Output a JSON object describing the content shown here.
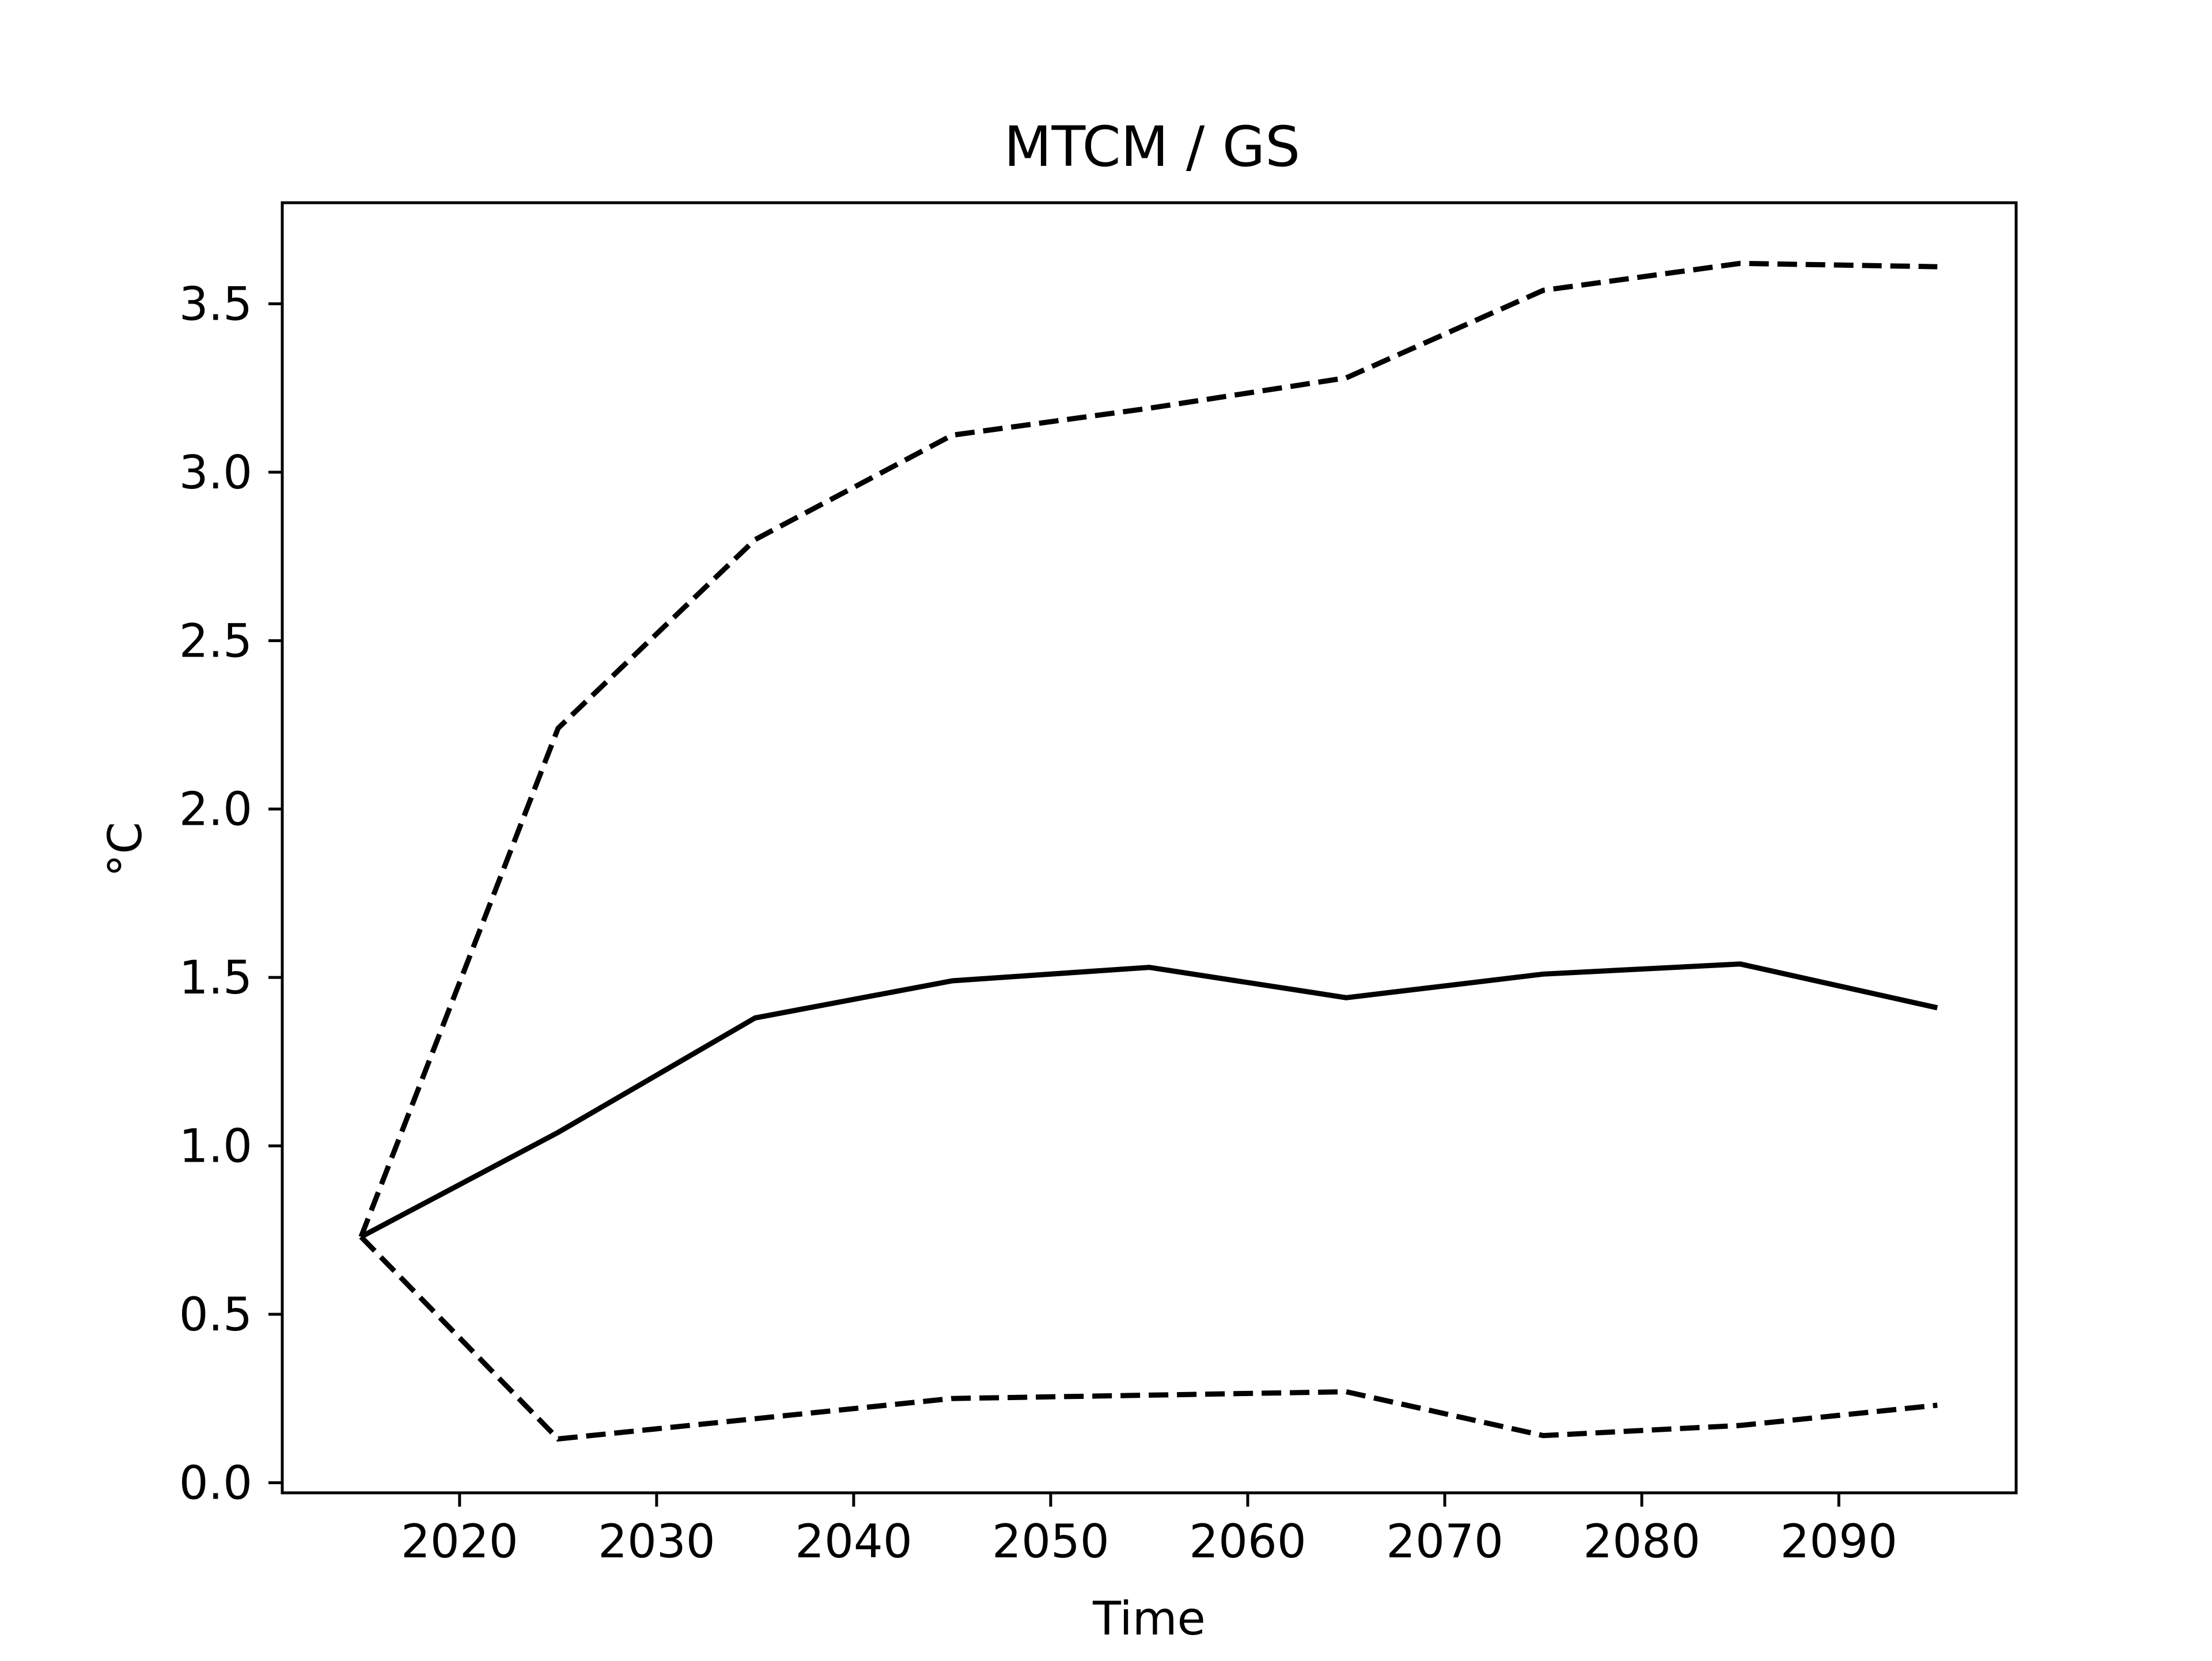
{
  "chart_data": {
    "type": "line",
    "title": "MTCM / GS",
    "xlabel": "Time",
    "ylabel": "°C",
    "xlim": [
      2011,
      2099
    ],
    "ylim": [
      -0.03,
      3.8
    ],
    "xticks": [
      2020,
      2030,
      2040,
      2050,
      2060,
      2070,
      2080,
      2090
    ],
    "yticks": [
      0.0,
      0.5,
      1.0,
      1.5,
      2.0,
      2.5,
      3.0,
      3.5
    ],
    "ytick_labels": [
      "0.0",
      "0.5",
      "1.0",
      "1.5",
      "2.0",
      "2.5",
      "3.0",
      "3.5"
    ],
    "grid": false,
    "legend": "none",
    "x": [
      2015,
      2025,
      2035,
      2045,
      2055,
      2065,
      2075,
      2085,
      2095
    ],
    "series": [
      {
        "style": "solid",
        "color": "#000000",
        "values": [
          0.73,
          1.04,
          1.38,
          1.49,
          1.53,
          1.44,
          1.51,
          1.54,
          1.41
        ]
      },
      {
        "style": "dashed",
        "color": "#000000",
        "values": [
          0.73,
          2.24,
          2.8,
          3.11,
          3.19,
          3.28,
          3.54,
          3.62,
          3.61
        ]
      },
      {
        "style": "dashed",
        "color": "#000000",
        "values": [
          0.73,
          0.13,
          0.19,
          0.25,
          0.26,
          0.27,
          0.14,
          0.17,
          0.23
        ]
      }
    ]
  }
}
